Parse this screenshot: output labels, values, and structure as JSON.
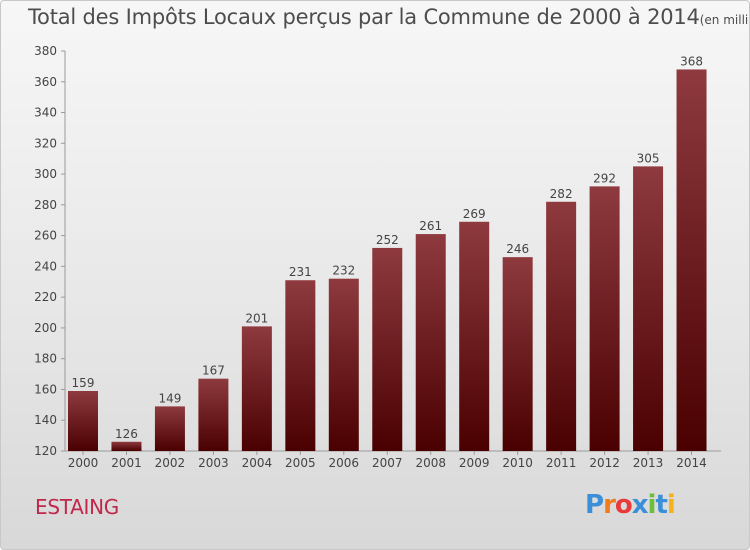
{
  "title": "Total des Impôts Locaux perçus par la Commune de 2000 à 2014",
  "subtitle": "(en milliers d'€)",
  "commune": "ESTAING",
  "logo": {
    "text": "Proxiti",
    "letters": [
      "P",
      "r",
      "o",
      "x",
      "i",
      "t",
      "i"
    ],
    "colors": [
      "#3a8fd8",
      "#f07d1c",
      "#e83a3a",
      "#3a8fd8",
      "#6cbf3a",
      "#3a8fd8",
      "#f5b21c"
    ]
  },
  "colors": {
    "bar_top": "#8e3a3f",
    "bar_bottom": "#4a0000",
    "title": "#4d4d4d",
    "commune": "#c0274a"
  },
  "chart_data": {
    "type": "bar",
    "categories": [
      "2000",
      "2001",
      "2002",
      "2003",
      "2004",
      "2005",
      "2006",
      "2007",
      "2008",
      "2009",
      "2010",
      "2011",
      "2012",
      "2013",
      "2014"
    ],
    "values": [
      159,
      126,
      149,
      167,
      201,
      231,
      232,
      252,
      261,
      269,
      246,
      282,
      292,
      305,
      368
    ],
    "title": "Total des Impôts Locaux perçus par la Commune de 2000 à 2014",
    "xlabel": "",
    "ylabel": "",
    "ylim": [
      120,
      380
    ],
    "yticks": [
      120,
      140,
      160,
      180,
      200,
      220,
      240,
      260,
      280,
      300,
      320,
      340,
      360,
      380
    ],
    "grid": false,
    "data_labels": true
  }
}
